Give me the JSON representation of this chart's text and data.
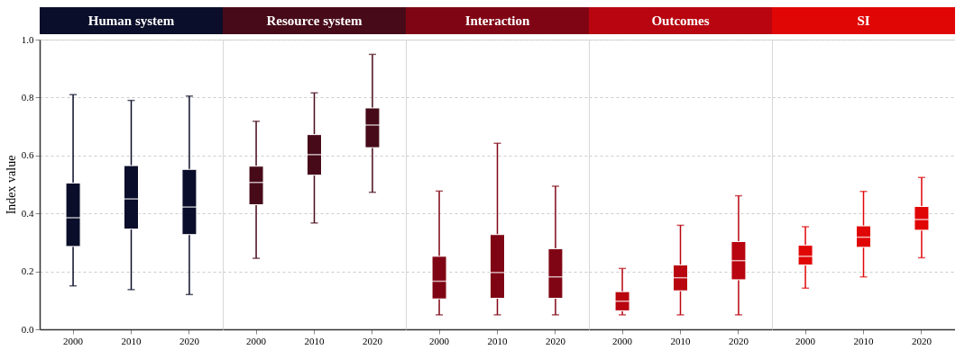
{
  "chart_data": [
    {
      "type": "box",
      "title": "Human system",
      "ylabel": "Index value",
      "categories": [
        "2000",
        "2010",
        "2020"
      ],
      "ylim": [
        0,
        1
      ],
      "yticks": [
        {
          "value": 0,
          "label": "0.0"
        },
        {
          "value": 0.2,
          "label": "0.2"
        },
        {
          "value": 0.4,
          "label": "0.4"
        },
        {
          "value": 0.6,
          "label": "0.6"
        },
        {
          "value": 0.8,
          "label": "0.8"
        },
        {
          "value": 1,
          "label": "1.0"
        }
      ],
      "grid": "y",
      "series": [
        {
          "color": "#0a0e2a",
          "boxes": [
            {
              "low": 0.15,
              "q1": 0.286,
              "median": 0.385,
              "q3": 0.505,
              "high": 0.81
            },
            {
              "low": 0.137,
              "q1": 0.346,
              "median": 0.45,
              "q3": 0.565,
              "high": 0.79
            },
            {
              "low": 0.12,
              "q1": 0.327,
              "median": 0.422,
              "q3": 0.552,
              "high": 0.805
            }
          ]
        }
      ]
    },
    {
      "type": "box",
      "title": "Resource system",
      "categories": [
        "2000",
        "2010",
        "2020"
      ],
      "ylim": [
        0,
        1
      ],
      "yticks": [
        0,
        0.2,
        0.4,
        0.6,
        0.8,
        1
      ],
      "grid": "y",
      "tick_labels": "x",
      "series": [
        {
          "color": "#470a19",
          "boxes": [
            {
              "low": 0.245,
              "q1": 0.43,
              "median": 0.507,
              "q3": 0.563,
              "high": 0.718
            },
            {
              "low": 0.367,
              "q1": 0.532,
              "median": 0.603,
              "q3": 0.672,
              "high": 0.816
            },
            {
              "low": 0.473,
              "q1": 0.627,
              "median": 0.705,
              "q3": 0.764,
              "high": 0.949
            }
          ]
        }
      ]
    },
    {
      "type": "box",
      "title": "Interaction",
      "categories": [
        "2000",
        "2010",
        "2020"
      ],
      "ylim": [
        0,
        1
      ],
      "yticks": [
        0,
        0.2,
        0.4,
        0.6,
        0.8,
        1
      ],
      "grid": "y",
      "tick_labels": "x",
      "series": [
        {
          "color": "#800514",
          "boxes": [
            {
              "low": 0.05,
              "q1": 0.105,
              "median": 0.166,
              "q3": 0.252,
              "high": 0.477
            },
            {
              "low": 0.05,
              "q1": 0.107,
              "median": 0.196,
              "q3": 0.327,
              "high": 0.642
            },
            {
              "low": 0.05,
              "q1": 0.107,
              "median": 0.181,
              "q3": 0.278,
              "high": 0.494
            }
          ]
        }
      ]
    },
    {
      "type": "box",
      "title": "Outcomes",
      "categories": [
        "2000",
        "2010",
        "2020"
      ],
      "ylim": [
        0,
        1
      ],
      "yticks": [
        0,
        0.2,
        0.4,
        0.6,
        0.8,
        1
      ],
      "grid": "y",
      "tick_labels": "x",
      "series": [
        {
          "color": "#b8050f",
          "boxes": [
            {
              "low": 0.05,
              "q1": 0.064,
              "median": 0.097,
              "q3": 0.13,
              "high": 0.21
            },
            {
              "low": 0.05,
              "q1": 0.133,
              "median": 0.178,
              "q3": 0.222,
              "high": 0.359
            },
            {
              "low": 0.05,
              "q1": 0.171,
              "median": 0.237,
              "q3": 0.303,
              "high": 0.461
            }
          ]
        }
      ]
    },
    {
      "type": "box",
      "title": "SI",
      "categories": [
        "2000",
        "2010",
        "2020"
      ],
      "ylim": [
        0,
        1
      ],
      "yticks": [
        0,
        0.2,
        0.4,
        0.6,
        0.8,
        1
      ],
      "grid": "y",
      "tick_labels": "x",
      "series": [
        {
          "color": "#e00606",
          "boxes": [
            {
              "low": 0.142,
              "q1": 0.222,
              "median": 0.252,
              "q3": 0.29,
              "high": 0.354
            },
            {
              "low": 0.181,
              "q1": 0.283,
              "median": 0.318,
              "q3": 0.357,
              "high": 0.476
            },
            {
              "low": 0.247,
              "q1": 0.342,
              "median": 0.379,
              "q3": 0.424,
              "high": 0.524
            }
          ]
        }
      ]
    }
  ]
}
